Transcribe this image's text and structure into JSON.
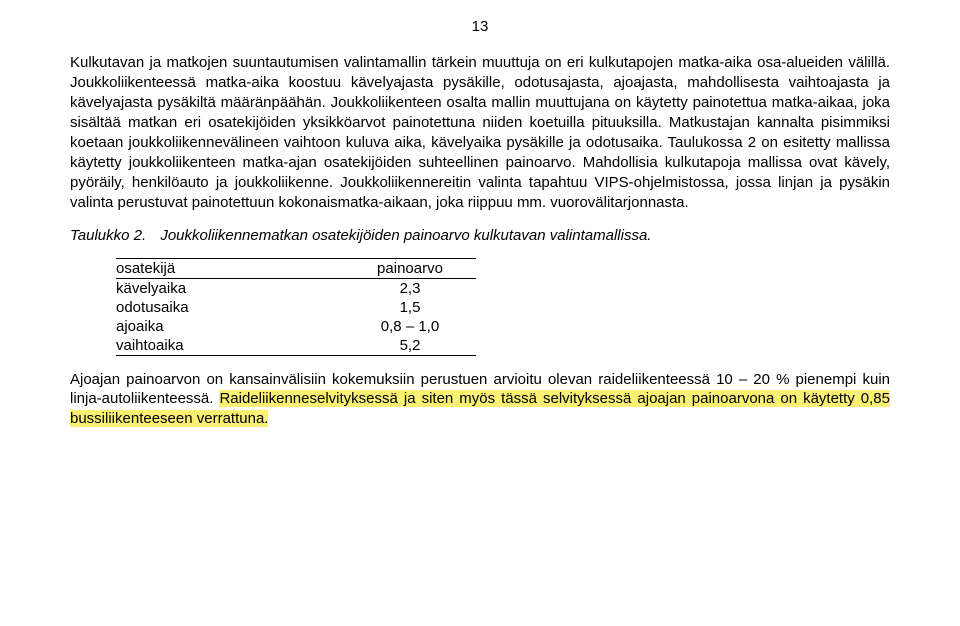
{
  "page_number": "13",
  "paragraph1": "Kulkutavan ja matkojen suuntautumisen valintamallin tärkein muuttuja on eri kulkutapojen matka-aika osa-alueiden välillä. Joukkoliikenteessä matka-aika koostuu kävelyajasta pysäkille, odotusajasta, ajoajasta, mahdollisesta vaihtoajasta ja kävelyajasta pysäkiltä määränpäähän. Joukkoliikenteen osalta mallin muuttujana on käytetty painotettua matka-aikaa, joka sisältää matkan eri osatekijöiden yksikköarvot painotettuna niiden koetuilla pituuksilla. Matkustajan kannalta pisimmiksi koetaan joukkoliikennevälineen vaihtoon kuluva aika, kävelyaika pysäkille ja odotusaika. Taulukossa 2 on esitetty mallissa käytetty joukkoliikenteen matka-ajan osatekijöiden suhteellinen painoarvo. Mahdollisia kulkutapoja mallissa ovat kävely, pyöräily, henkilöauto ja joukkoliikenne. Joukkoliikennereitin valinta tapahtuu VIPS-ohjelmistossa, jossa linjan ja pysäkin valinta perustuvat painotettuun kokonaismatka-aikaan, joka riippuu mm. vuorovälitarjonnasta.",
  "caption_label": "Taulukko 2.",
  "caption_text": "Joukkoliikennematkan osatekijöiden painoarvo kulkutavan valintamallissa.",
  "table": {
    "header": {
      "c1": "osatekijä",
      "c2": "painoarvo"
    },
    "rows": [
      {
        "c1": "kävelyaika",
        "c2": "2,3"
      },
      {
        "c1": "odotusaika",
        "c2": "1,5"
      },
      {
        "c1": "ajoaika",
        "c2": "0,8 – 1,0"
      },
      {
        "c1": "vaihtoaika",
        "c2": "5,2"
      }
    ]
  },
  "paragraph2_a": "Ajoajan painoarvon on kansainvälisiin kokemuksiin perustuen arvioitu olevan raideliikenteessä 10 – 20 % pienempi kuin linja-autoliikenteessä. ",
  "paragraph2_b_hl": "Raideliikenneselvityksessä ja siten myös tässä selvityksessä ajoajan painoarvona on käytetty 0,85 bussiliikenteeseen verrattuna.",
  "colors": {
    "background": "#ffffff",
    "text": "#000000",
    "highlight": "#faf174",
    "table_border": "#000000"
  },
  "typography": {
    "font_family": "Arial",
    "body_fontsize_pt": 11,
    "line_height": 1.33,
    "align": "justify"
  }
}
